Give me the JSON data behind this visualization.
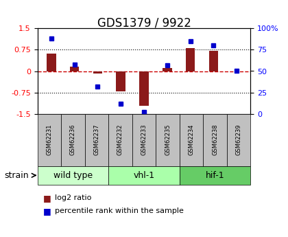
{
  "title": "GDS1379 / 9922",
  "samples": [
    "GSM62231",
    "GSM62236",
    "GSM62237",
    "GSM62232",
    "GSM62233",
    "GSM62235",
    "GSM62234",
    "GSM62238",
    "GSM62239"
  ],
  "log2_ratio": [
    0.62,
    0.15,
    -0.08,
    -0.72,
    -1.22,
    0.12,
    0.82,
    0.72,
    0.0
  ],
  "percentile_rank": [
    88,
    58,
    32,
    12,
    2,
    57,
    85,
    80,
    50
  ],
  "groups": [
    {
      "label": "wild type",
      "indices": [
        0,
        1,
        2
      ],
      "color": "#ccffcc"
    },
    {
      "label": "vhl-1",
      "indices": [
        3,
        4,
        5
      ],
      "color": "#aaffaa"
    },
    {
      "label": "hif-1",
      "indices": [
        6,
        7,
        8
      ],
      "color": "#66cc66"
    }
  ],
  "ylim_left": [
    -1.5,
    1.5
  ],
  "ylim_right": [
    0,
    100
  ],
  "yticks_left": [
    -1.5,
    -0.75,
    0,
    0.75,
    1.5
  ],
  "yticks_right": [
    0,
    25,
    50,
    75,
    100
  ],
  "bar_color": "#8b1a1a",
  "dot_color": "#0000cc",
  "hline_color": "#cc0000",
  "grid_color": "black",
  "legend_bar_label": "log2 ratio",
  "legend_dot_label": "percentile rank within the sample",
  "strain_label": "strain",
  "group_label_fontsize": 9,
  "tick_fontsize": 8,
  "title_fontsize": 12
}
